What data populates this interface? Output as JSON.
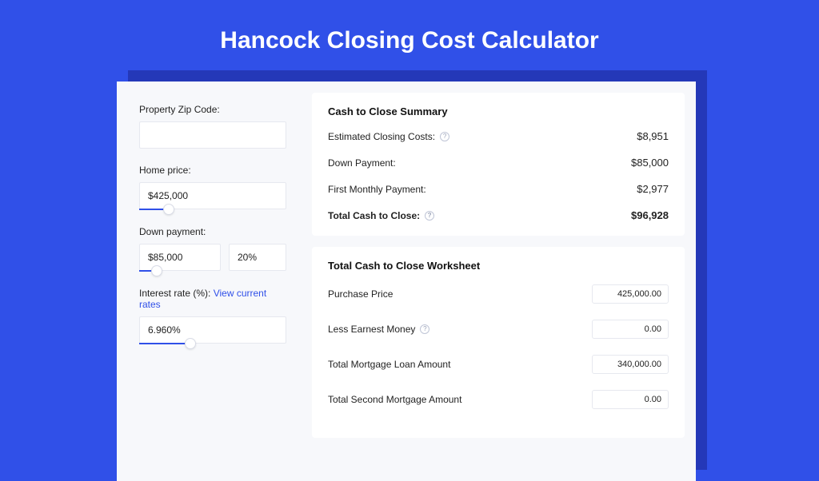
{
  "colors": {
    "page_bg": "#3050e8",
    "shadow": "#2438b8",
    "card_bg": "#f7f8fb",
    "panel_bg": "#ffffff",
    "border": "#e6e8ef",
    "text": "#222222",
    "link": "#3050e8"
  },
  "title": "Hancock Closing Cost Calculator",
  "form": {
    "zip_label": "Property Zip Code:",
    "zip_value": "",
    "home_price_label": "Home price:",
    "home_price_value": "$425,000",
    "home_price_slider_pct": 20,
    "down_payment_label": "Down payment:",
    "down_payment_value": "$85,000",
    "down_payment_pct_value": "20%",
    "down_payment_slider_pct": 20,
    "interest_label": "Interest rate (%):",
    "interest_link": "View current rates",
    "interest_value": "6.960%",
    "interest_slider_pct": 35
  },
  "summary": {
    "title": "Cash to Close Summary",
    "rows": [
      {
        "label": "Estimated Closing Costs:",
        "help": true,
        "value": "$8,951",
        "bold": false
      },
      {
        "label": "Down Payment:",
        "help": false,
        "value": "$85,000",
        "bold": false
      },
      {
        "label": "First Monthly Payment:",
        "help": false,
        "value": "$2,977",
        "bold": false
      },
      {
        "label": "Total Cash to Close:",
        "help": true,
        "value": "$96,928",
        "bold": true
      }
    ]
  },
  "worksheet": {
    "title": "Total Cash to Close Worksheet",
    "rows": [
      {
        "label": "Purchase Price",
        "help": false,
        "value": "425,000.00"
      },
      {
        "label": "Less Earnest Money",
        "help": true,
        "value": "0.00"
      },
      {
        "label": "Total Mortgage Loan Amount",
        "help": false,
        "value": "340,000.00"
      },
      {
        "label": "Total Second Mortgage Amount",
        "help": false,
        "value": "0.00"
      }
    ]
  }
}
